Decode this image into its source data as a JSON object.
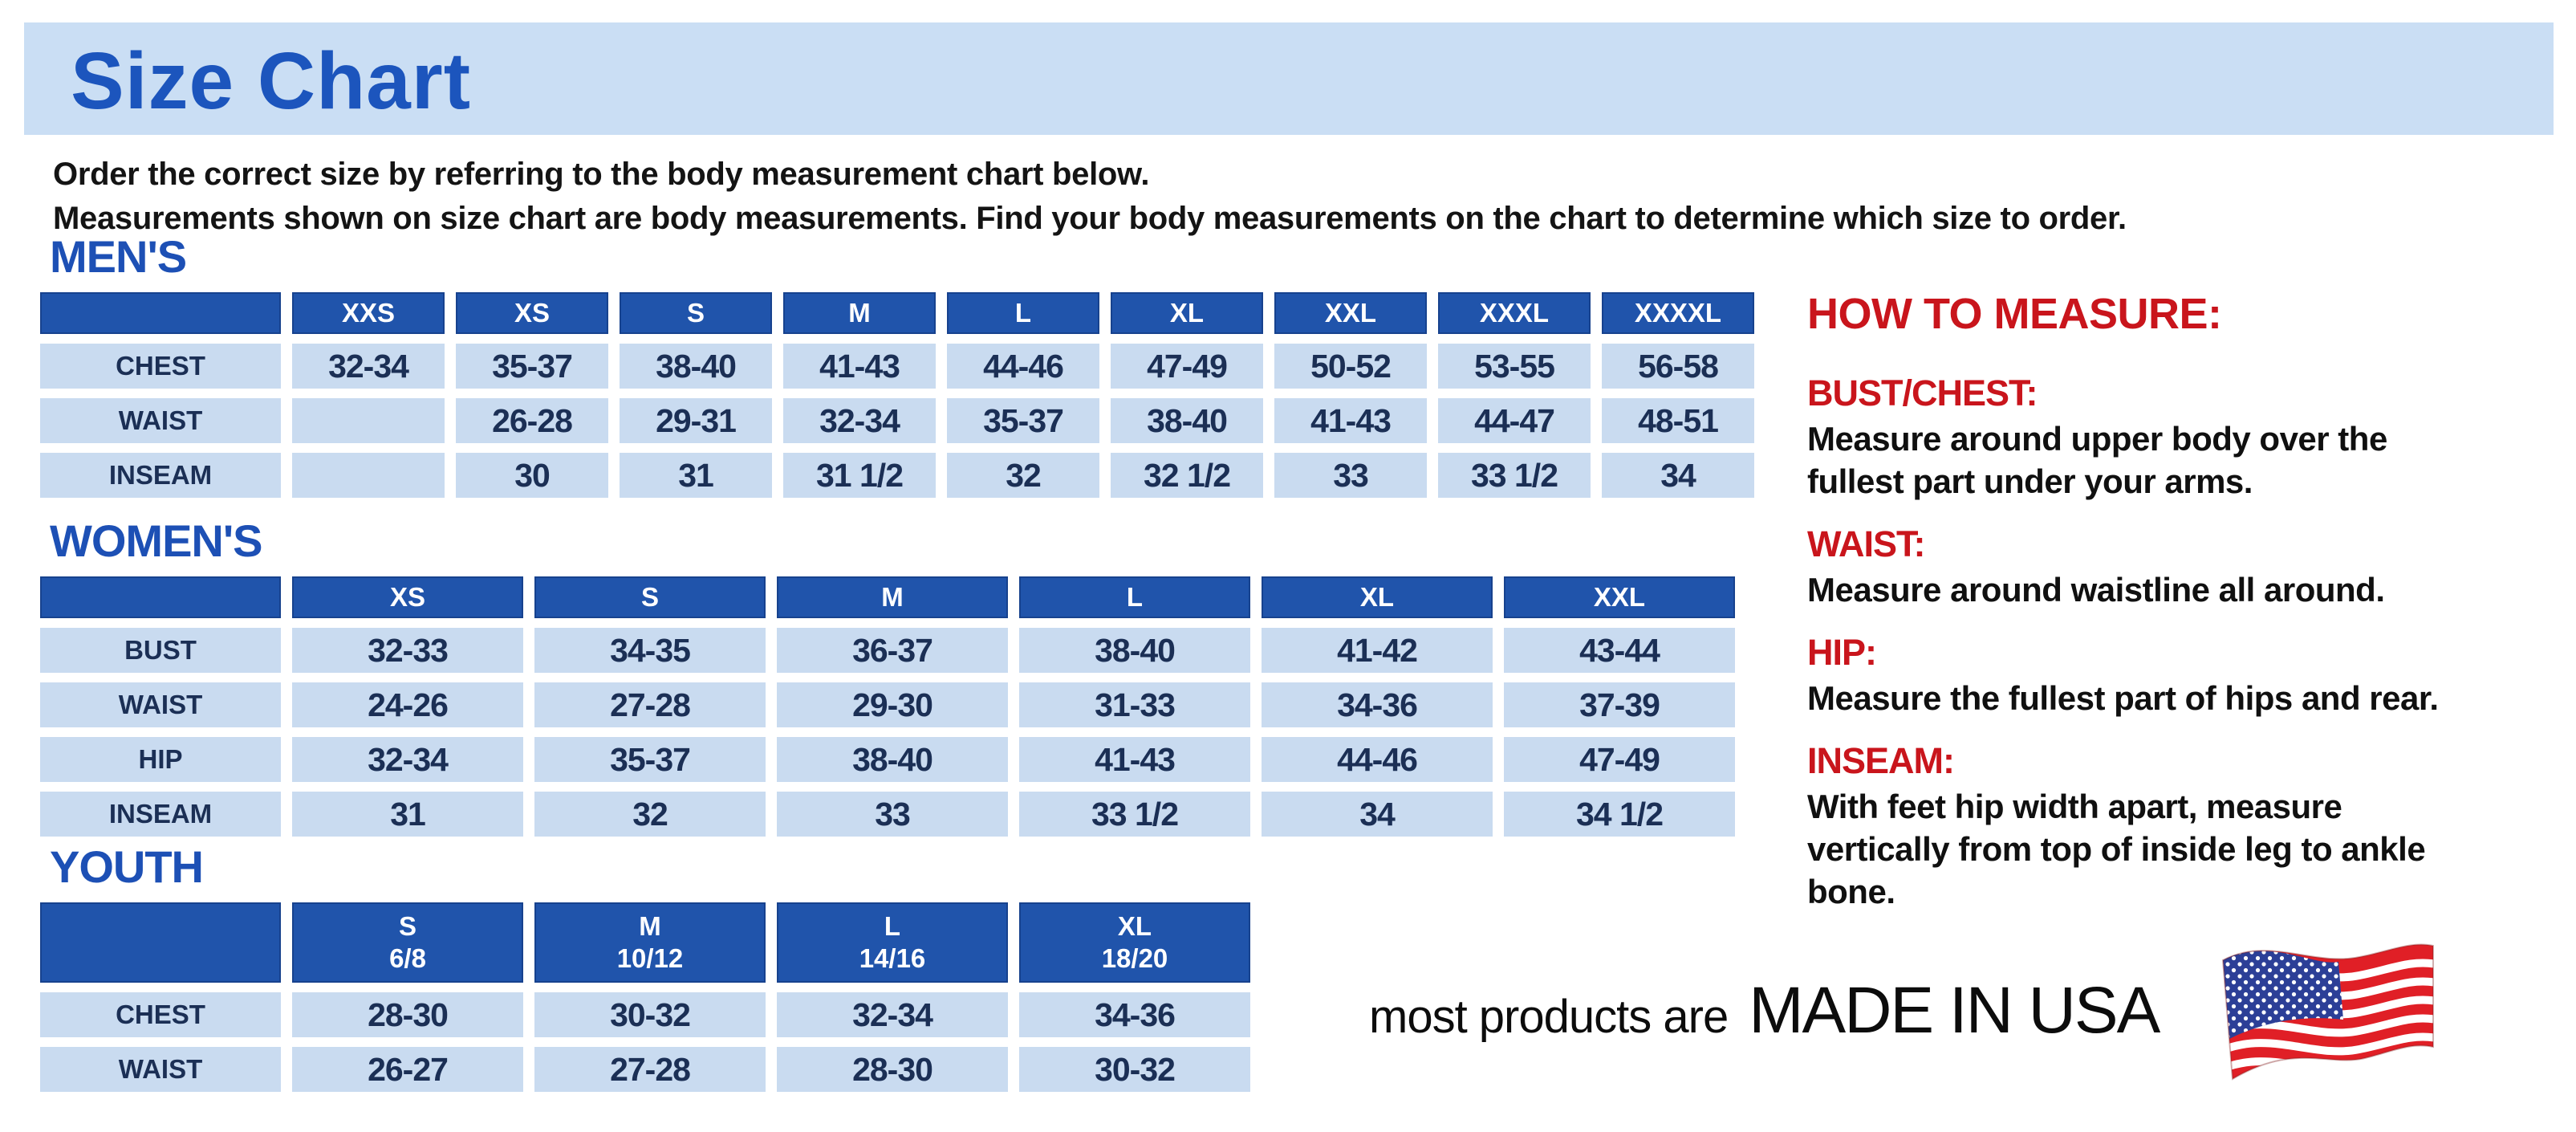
{
  "page": {
    "title": "Size Chart",
    "intro_line1": "Order the correct size by referring to the body measurement chart below.",
    "intro_line2": "Measurements shown on size chart are body measurements.  Find your body measurements on the chart to determine which size to order."
  },
  "colors": {
    "banner_bg": "#cadef4",
    "title_blue": "#1c55bd",
    "heading_blue": "#1d50b5",
    "table_header_bg": "#2054ab",
    "table_header_text": "#ffffff",
    "cell_bg": "#c9dbf0",
    "cell_text": "#1b2f55",
    "accent_red": "#c9151c",
    "flag_red": "#e01f26",
    "flag_blue": "#2c3f97"
  },
  "tables": [
    {
      "id": "mens",
      "heading": "MEN'S",
      "columns": [
        "",
        "XXS",
        "XS",
        "S",
        "M",
        "L",
        "XL",
        "XXL",
        "XXXL",
        "XXXXL"
      ],
      "rows": [
        {
          "label": "CHEST",
          "values": [
            "32-34",
            "35-37",
            "38-40",
            "41-43",
            "44-46",
            "47-49",
            "50-52",
            "53-55",
            "56-58"
          ]
        },
        {
          "label": "WAIST",
          "values": [
            "",
            "26-28",
            "29-31",
            "32-34",
            "35-37",
            "38-40",
            "41-43",
            "44-47",
            "48-51"
          ]
        },
        {
          "label": "INSEAM",
          "values": [
            "",
            "30",
            "31",
            "31 1/2",
            "32",
            "32 1/2",
            "33",
            "33 1/2",
            "34"
          ]
        }
      ]
    },
    {
      "id": "womens",
      "heading": "WOMEN'S",
      "columns": [
        "",
        "XS",
        "S",
        "M",
        "L",
        "XL",
        "XXL"
      ],
      "rows": [
        {
          "label": "BUST",
          "values": [
            "32-33",
            "34-35",
            "36-37",
            "38-40",
            "41-42",
            "43-44"
          ]
        },
        {
          "label": "WAIST",
          "values": [
            "24-26",
            "27-28",
            "29-30",
            "31-33",
            "34-36",
            "37-39"
          ]
        },
        {
          "label": "HIP",
          "values": [
            "32-34",
            "35-37",
            "38-40",
            "41-43",
            "44-46",
            "47-49"
          ]
        },
        {
          "label": "INSEAM",
          "values": [
            "31",
            "32",
            "33",
            "33 1/2",
            "34",
            "34 1/2"
          ]
        }
      ]
    },
    {
      "id": "youth",
      "heading": "YOUTH",
      "columns": [
        "",
        "S\n6/8",
        "M\n10/12",
        "L\n14/16",
        "XL\n18/20"
      ],
      "rows": [
        {
          "label": "CHEST",
          "values": [
            "28-30",
            "30-32",
            "32-34",
            "34-36"
          ]
        },
        {
          "label": "WAIST",
          "values": [
            "26-27",
            "27-28",
            "28-30",
            "30-32"
          ]
        }
      ]
    }
  ],
  "how_to_measure": {
    "title": "HOW TO MEASURE:",
    "items": [
      {
        "label": "BUST/CHEST:",
        "text": "Measure around upper body over the fullest part under your arms."
      },
      {
        "label": "WAIST:",
        "text": "Measure around waistline all around."
      },
      {
        "label": "HIP:",
        "text": "Measure the fullest part of hips and rear."
      },
      {
        "label": "INSEAM:",
        "text": "With feet hip width apart, measure vertically from top of inside leg to ankle bone."
      }
    ]
  },
  "footer": {
    "made_in_prefix": "most products are",
    "made_in": "MADE IN USA",
    "flag_icon": "usa-flag-icon"
  }
}
